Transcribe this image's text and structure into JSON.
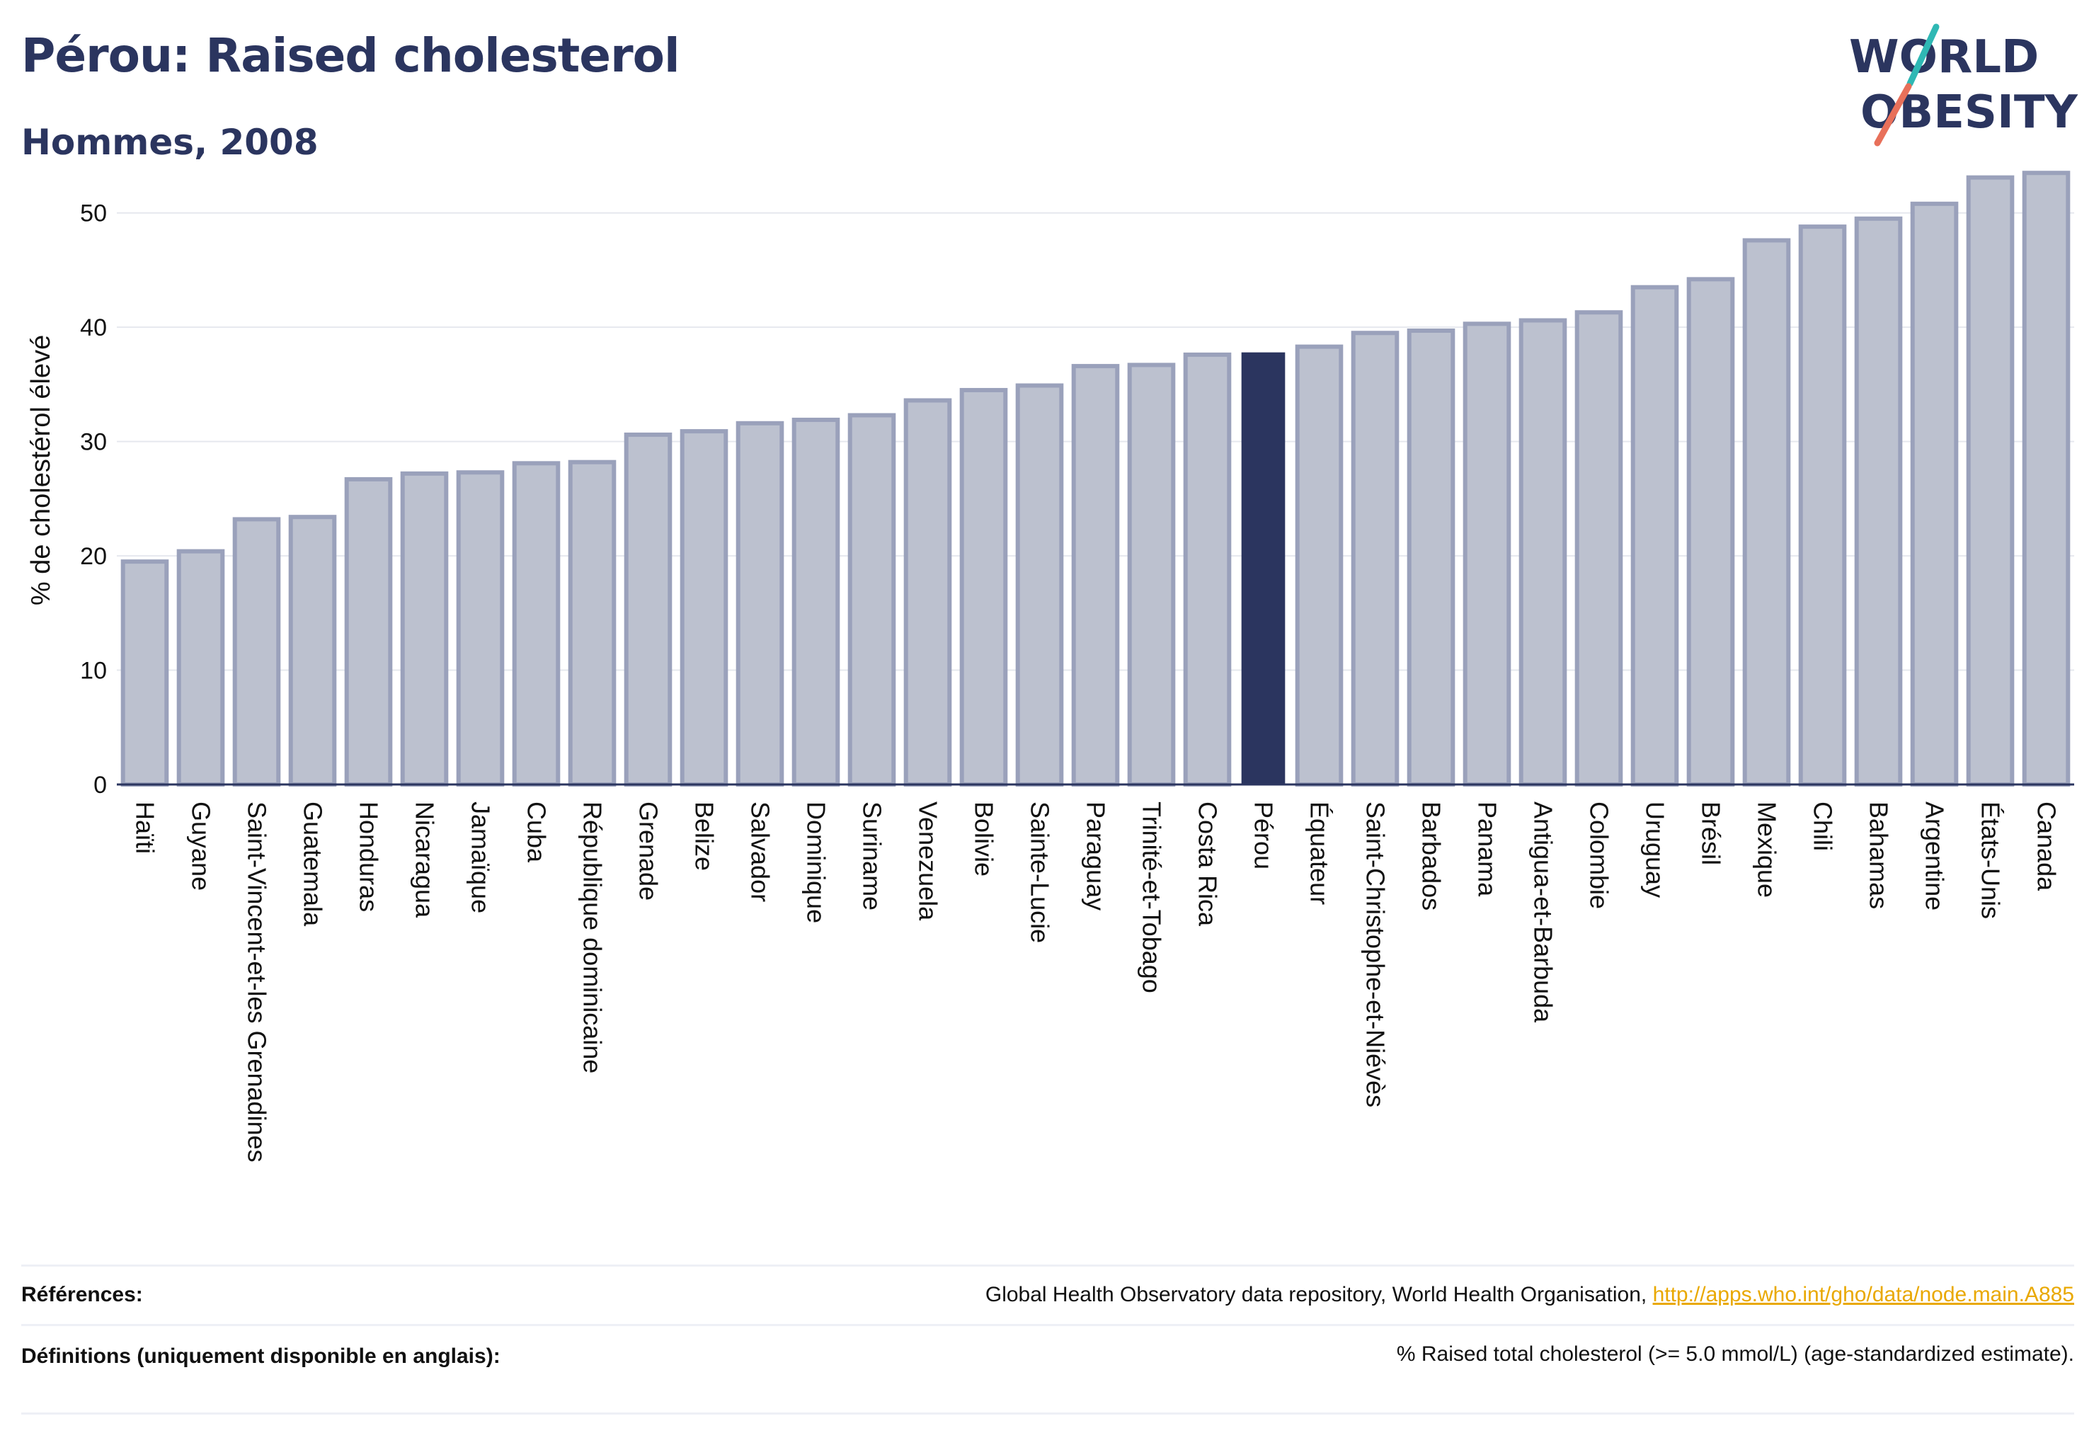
{
  "header": {
    "title": "Pérou: Raised cholesterol",
    "subtitle": "Hommes, 2008"
  },
  "logo": {
    "line1": "WORLD",
    "line2": "OBESITY",
    "slash_colors": [
      "#2fb8b4",
      "#e8705a"
    ]
  },
  "colors": {
    "highlight": "#2b355f",
    "bar": "#bcc1cf",
    "bar_edge": "#9aa1bb"
  },
  "chart_data": {
    "type": "bar",
    "title": "Pérou: Raised cholesterol",
    "subtitle": "Hommes, 2008",
    "ylabel": "% de cholestérol élevé",
    "xlabel": "",
    "ylim": [
      0,
      55
    ],
    "yticks": [
      0,
      10,
      20,
      30,
      40,
      50
    ],
    "grid": true,
    "highlight": "Pérou",
    "categories": [
      "Haïti",
      "Guyane",
      "Saint-Vincent-et-les Grenadines",
      "Guatemala",
      "Honduras",
      "Nicaragua",
      "Jamaïque",
      "Cuba",
      "République dominicaine",
      "Grenade",
      "Belize",
      "Salvador",
      "Dominique",
      "Suriname",
      "Venezuela",
      "Bolivie",
      "Sainte-Lucie",
      "Paraguay",
      "Trinité-et-Tobago",
      "Costa Rica",
      "Pérou",
      "Équateur",
      "Saint-Christophe-et-Niévès",
      "Barbados",
      "Panama",
      "Antigua-et-Barbuda",
      "Colombie",
      "Uruguay",
      "Brésil",
      "Mexique",
      "Chili",
      "Bahamas",
      "Argentine",
      "États-Unis",
      "Canada"
    ],
    "values": [
      19.5,
      20.4,
      23.2,
      23.4,
      26.7,
      27.2,
      27.3,
      28.1,
      28.2,
      30.6,
      30.9,
      31.6,
      31.9,
      32.3,
      33.6,
      34.5,
      34.9,
      36.6,
      36.7,
      37.6,
      37.8,
      38.3,
      39.5,
      39.7,
      40.3,
      40.6,
      41.3,
      43.5,
      44.2,
      47.6,
      48.8,
      49.5,
      50.8,
      53.1,
      53.5
    ]
  },
  "footer": {
    "references_label": "Références:",
    "references_text": "Global Health Observatory data repository, World Health Organisation,",
    "references_link": "http://apps.who.int/gho/data/node.main.A885",
    "definitions_label": "Définitions (uniquement disponible en anglais):",
    "definitions_text": "% Raised total cholesterol (>= 5.0 mmol/L) (age-standardized estimate)."
  }
}
